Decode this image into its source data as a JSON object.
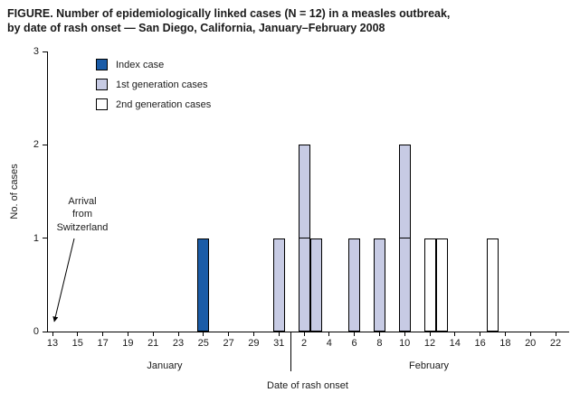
{
  "title": {
    "line1": "FIGURE. Number of epidemiologically linked cases (N = 12) in a measles outbreak,",
    "line2": "by date of rash onset — San Diego, California, January–February 2008"
  },
  "chart_data": {
    "type": "bar",
    "title": "Number of epidemiologically linked cases (N = 12) in a measles outbreak, by date of rash onset — San Diego, California, January–February 2008",
    "xlabel": "Date of rash onset",
    "ylabel": "No. of cases",
    "ylim": [
      0,
      3
    ],
    "y_ticks": [
      0,
      1,
      2,
      3
    ],
    "x_tick_labels": [
      "13",
      "15",
      "17",
      "19",
      "21",
      "23",
      "25",
      "27",
      "29",
      "31",
      "2",
      "4",
      "6",
      "8",
      "10",
      "12",
      "14",
      "16",
      "18",
      "20",
      "22"
    ],
    "month_labels": [
      {
        "label": "January"
      },
      {
        "label": "February"
      }
    ],
    "annotation": {
      "text": "Arrival\nfrom\nSwitzerland",
      "points_to": "January 13"
    },
    "legend": [
      {
        "label": "Index case",
        "type": "index",
        "color": "#1a5ca8"
      },
      {
        "label": "1st generation cases",
        "type": "gen1",
        "color": "#c7cbe4"
      },
      {
        "label": "2nd generation cases",
        "type": "gen2",
        "color": "#ffffff"
      }
    ],
    "total_cases": 12,
    "bars": [
      {
        "date": "Jan 25",
        "day_index": 12,
        "count": 1,
        "type": "index"
      },
      {
        "date": "Jan 31",
        "day_index": 18,
        "count": 1,
        "type": "gen1"
      },
      {
        "date": "Feb 2",
        "day_index": 20,
        "count": 2,
        "type": "gen1"
      },
      {
        "date": "Feb 3",
        "day_index": 21,
        "count": 1,
        "type": "gen1"
      },
      {
        "date": "Feb 6",
        "day_index": 24,
        "count": 1,
        "type": "gen1"
      },
      {
        "date": "Feb 8",
        "day_index": 26,
        "count": 1,
        "type": "gen1"
      },
      {
        "date": "Feb 10",
        "day_index": 28,
        "count": 2,
        "type": "gen1"
      },
      {
        "date": "Feb 12",
        "day_index": 30,
        "count": 1,
        "type": "gen2"
      },
      {
        "date": "Feb 13",
        "day_index": 31,
        "count": 1,
        "type": "gen2"
      },
      {
        "date": "Feb 17",
        "day_index": 35,
        "count": 1,
        "type": "gen2"
      }
    ]
  }
}
